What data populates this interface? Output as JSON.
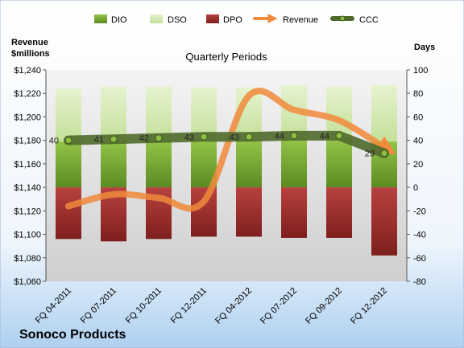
{
  "colors": {
    "dio_top": "#8cbf3f",
    "dio_bottom": "#5e8a22",
    "dso": "#d4eab0",
    "dpo_top": "#c0504d",
    "dpo_bottom": "#8b2523",
    "revenue": "#f08a3c",
    "ccc": "#4f6a2c",
    "ccc_marker": "#8cbf3f"
  },
  "chart_data": {
    "type": "bar",
    "title": "Quarterly Periods",
    "footer_title": "Sonoco Products",
    "left_axis_label_line1": "Revenue",
    "left_axis_label_line2": "$millions",
    "right_axis_label": "Days",
    "categories": [
      "FQ 04-2011",
      "FQ 07-2011",
      "FQ 10-2011",
      "FQ 12-2011",
      "FQ 04-2012",
      "FQ 07-2012",
      "FQ 09-2012",
      "FQ 12-2012"
    ],
    "left_axis": {
      "min": 1060,
      "max": 1240,
      "step": 20,
      "tick_labels": [
        "$1,060",
        "$1,080",
        "$1,100",
        "$1,120",
        "$1,140",
        "$1,160",
        "$1,180",
        "$1,200",
        "$1,220",
        "$1,240"
      ]
    },
    "right_axis": {
      "min": -80,
      "max": 100,
      "step": 20,
      "tick_labels": [
        "-80",
        "-60",
        "-40",
        "-20",
        "0",
        "20",
        "40",
        "60",
        "80",
        "100"
      ]
    },
    "legend": [
      "DIO",
      "DSO",
      "DPO",
      "Revenue",
      "CCC"
    ],
    "series": [
      {
        "name": "DIO",
        "axis": "right",
        "kind": "stacked-bar",
        "values": [
          39,
          39,
          40,
          40,
          40,
          41,
          41,
          39
        ]
      },
      {
        "name": "DSO",
        "axis": "right",
        "kind": "stacked-bar",
        "values": [
          45,
          47,
          46,
          45,
          45,
          46,
          45,
          48
        ]
      },
      {
        "name": "DPO",
        "axis": "right",
        "kind": "stacked-bar",
        "values": [
          -44,
          -46,
          -44,
          -42,
          -42,
          -43,
          -43,
          -58
        ]
      },
      {
        "name": "Revenue",
        "axis": "left",
        "kind": "line",
        "values": [
          1124,
          1134,
          1131,
          1128,
          1218,
          1206,
          1197,
          1174
        ]
      },
      {
        "name": "CCC",
        "axis": "right",
        "kind": "line",
        "values": [
          40,
          41,
          42,
          43,
          43,
          44,
          44,
          29
        ]
      }
    ],
    "ccc_labels": [
      "40",
      "41",
      "42",
      "43",
      "43",
      "44",
      "44",
      "29"
    ],
    "grid": false,
    "legend_position": "top"
  }
}
